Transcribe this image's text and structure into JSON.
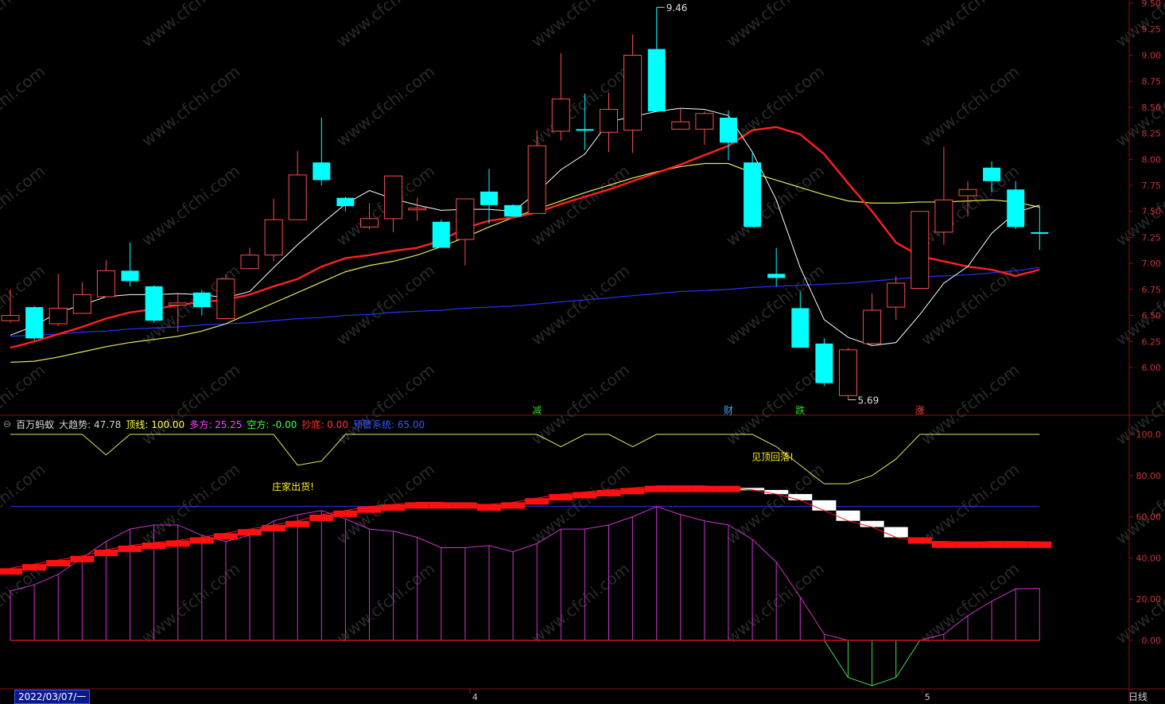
{
  "indicator": {
    "name": "百万蚂蚁",
    "items": [
      {
        "label": "大趋势:",
        "value": "47.78",
        "color": "#cfcfcf"
      },
      {
        "label": "顶线:",
        "value": "100.00",
        "color": "#ffff55"
      },
      {
        "label": "多方:",
        "value": "25.25",
        "color": "#ff44ff"
      },
      {
        "label": "空方:",
        "value": "-0.00",
        "color": "#44ff44"
      },
      {
        "label": "抄底:",
        "value": "0.00",
        "color": "#ff3333"
      },
      {
        "label": "预警系统:",
        "value": "65.00",
        "color": "#3355ff"
      }
    ]
  },
  "date_cursor": "2022/03/07/一",
  "period_label": "日线",
  "price_axis": [
    "9.50",
    "9.25",
    "9.00",
    "8.75",
    "8.50",
    "8.25",
    "8.00",
    "7.75",
    "7.50",
    "7.25",
    "7.00",
    "6.75",
    "6.50",
    "6.25",
    "6.00"
  ],
  "ind_axis": [
    "100.0",
    "80.00",
    "60.00",
    "40.00",
    "20.00",
    "0.00"
  ],
  "month_labels": [
    "4",
    "5"
  ],
  "annotations": {
    "high": "9.46",
    "low": "5.69",
    "signals": [
      {
        "text": "减",
        "color": "#22dd22"
      },
      {
        "text": "财",
        "color": "#33aaff"
      },
      {
        "text": "跌",
        "color": "#22dd22"
      },
      {
        "text": "涨",
        "color": "#ff4444"
      }
    ],
    "callouts": [
      "庄家出货!",
      "见顶回落!"
    ]
  },
  "watermark": "www.cfchi.com",
  "colors": {
    "up": "#ff4d4d",
    "down": "#00ffff",
    "ma5": "#ffffff",
    "ma10": "#ff2020",
    "ma20": "#e6e65a",
    "ma60": "#2233ff"
  },
  "chart_data": {
    "type": "candlestick",
    "ohlc": [
      [
        6.45,
        6.5,
        6.75,
        6.43
      ],
      [
        6.58,
        6.28,
        6.59,
        6.26
      ],
      [
        6.42,
        6.57,
        6.9,
        6.4
      ],
      [
        6.52,
        6.7,
        6.82,
        6.52
      ],
      [
        6.68,
        6.93,
        7.03,
        6.68
      ],
      [
        6.93,
        6.83,
        7.2,
        6.78
      ],
      [
        6.78,
        6.45,
        6.79,
        6.43
      ],
      [
        6.6,
        6.62,
        6.72,
        6.34
      ],
      [
        6.72,
        6.58,
        6.74,
        6.5
      ],
      [
        6.47,
        6.85,
        6.89,
        6.47
      ],
      [
        6.95,
        7.08,
        7.15,
        6.95
      ],
      [
        7.08,
        7.42,
        7.62,
        7.02
      ],
      [
        7.42,
        7.85,
        8.08,
        7.42
      ],
      [
        7.97,
        7.8,
        8.4,
        7.75
      ],
      [
        7.63,
        7.55,
        7.64,
        7.5
      ],
      [
        7.35,
        7.43,
        7.58,
        7.33
      ],
      [
        7.43,
        7.84,
        7.84,
        7.3
      ],
      [
        7.53,
        7.53,
        7.63,
        7.41
      ],
      [
        7.4,
        7.15,
        7.42,
        7.15
      ],
      [
        7.23,
        7.62,
        7.62,
        6.98
      ],
      [
        7.69,
        7.56,
        7.91,
        7.38
      ],
      [
        7.56,
        7.45,
        7.57,
        7.45
      ],
      [
        7.48,
        8.13,
        8.28,
        7.48
      ],
      [
        8.27,
        8.58,
        9.02,
        8.18
      ],
      [
        8.29,
        8.28,
        8.63,
        8.09
      ],
      [
        8.26,
        8.48,
        8.64,
        8.07
      ],
      [
        8.28,
        9.0,
        9.2,
        8.06
      ],
      [
        9.06,
        8.46,
        9.46,
        8.46
      ],
      [
        8.29,
        8.36,
        8.49,
        8.29
      ],
      [
        8.29,
        8.44,
        8.46,
        8.14
      ],
      [
        8.4,
        8.16,
        8.47,
        7.99
      ],
      [
        7.97,
        7.35,
        8.07,
        7.35
      ],
      [
        6.9,
        6.86,
        7.15,
        6.78
      ],
      [
        6.57,
        6.19,
        6.73,
        6.19
      ],
      [
        6.23,
        5.85,
        6.28,
        5.82
      ],
      [
        5.73,
        6.17,
        6.19,
        5.69
      ],
      [
        6.23,
        6.55,
        6.71,
        6.21
      ],
      [
        6.58,
        6.81,
        6.88,
        6.46
      ],
      [
        6.76,
        7.5,
        7.5,
        6.76
      ],
      [
        7.3,
        7.61,
        8.12,
        7.18
      ],
      [
        7.65,
        7.71,
        7.79,
        7.45
      ],
      [
        7.92,
        7.79,
        7.98,
        7.68
      ],
      [
        7.71,
        7.35,
        7.79,
        7.33
      ],
      [
        7.3,
        7.29,
        7.55,
        7.13
      ]
    ],
    "ma5": [
      6.31,
      6.4,
      6.53,
      6.6,
      6.68,
      6.7,
      6.7,
      6.71,
      6.7,
      6.67,
      6.73,
      6.96,
      7.18,
      7.38,
      7.57,
      7.7,
      7.62,
      7.56,
      7.51,
      7.52,
      7.52,
      7.5,
      7.68,
      7.9,
      8.05,
      8.36,
      8.41,
      8.46,
      8.49,
      8.48,
      8.42,
      8.07,
      7.61,
      6.96,
      6.46,
      6.29,
      6.21,
      6.24,
      6.51,
      6.81,
      6.97,
      7.29,
      7.49,
      7.56
    ],
    "ma10": [
      6.19,
      6.25,
      6.32,
      6.39,
      6.47,
      6.53,
      6.56,
      6.6,
      6.63,
      6.65,
      6.7,
      6.78,
      6.85,
      6.97,
      7.05,
      7.08,
      7.12,
      7.15,
      7.22,
      7.34,
      7.41,
      7.44,
      7.49,
      7.57,
      7.64,
      7.71,
      7.79,
      7.87,
      7.95,
      8.04,
      8.13,
      8.28,
      8.31,
      8.24,
      8.05,
      7.77,
      7.5,
      7.2,
      7.07,
      7.02,
      6.97,
      6.94,
      6.88,
      6.94
    ],
    "ma20": [
      6.05,
      6.06,
      6.1,
      6.15,
      6.2,
      6.24,
      6.27,
      6.3,
      6.35,
      6.42,
      6.52,
      6.62,
      6.72,
      6.82,
      6.92,
      6.98,
      7.02,
      7.08,
      7.16,
      7.25,
      7.35,
      7.44,
      7.52,
      7.6,
      7.68,
      7.75,
      7.82,
      7.88,
      7.93,
      7.96,
      7.96,
      7.87,
      7.8,
      7.73,
      7.66,
      7.6,
      7.58,
      7.58,
      7.59,
      7.59,
      7.6,
      7.61,
      7.59,
      7.54
    ],
    "ma60": [
      6.3,
      6.31,
      6.32,
      6.34,
      6.35,
      6.37,
      6.38,
      6.39,
      6.41,
      6.42,
      6.43,
      6.45,
      6.47,
      6.48,
      6.5,
      6.51,
      6.53,
      6.54,
      6.55,
      6.57,
      6.58,
      6.59,
      6.61,
      6.63,
      6.65,
      6.67,
      6.69,
      6.71,
      6.73,
      6.74,
      6.75,
      6.77,
      6.78,
      6.79,
      6.8,
      6.81,
      6.83,
      6.85,
      6.87,
      6.88,
      6.89,
      6.91,
      6.93,
      6.96
    ],
    "trend": [
      35,
      37,
      39,
      41,
      44,
      46,
      47.5,
      48.5,
      50,
      52,
      54,
      56,
      58,
      61,
      63,
      65,
      66,
      67,
      67,
      66,
      66,
      67,
      69,
      71,
      72,
      73,
      74,
      75,
      75,
      75,
      74,
      73,
      71,
      68,
      63,
      58,
      55,
      50,
      48,
      48,
      47.5,
      48,
      48,
      47.78
    ],
    "top_line": [
      100,
      100,
      100,
      100,
      90,
      100,
      100,
      100,
      100,
      100,
      100,
      100,
      85,
      87,
      100,
      100,
      100,
      100,
      100,
      100,
      100,
      100,
      100,
      94,
      100,
      100,
      94,
      100,
      100,
      100,
      100,
      100,
      94,
      85,
      76,
      76,
      80,
      88,
      100,
      100,
      100,
      100,
      100,
      100
    ],
    "bull": [
      24,
      27,
      32,
      40,
      48,
      54,
      56,
      56,
      51,
      48,
      51,
      58,
      61,
      63,
      59,
      54,
      53,
      50,
      45,
      45,
      46,
      43,
      47,
      54,
      54,
      56,
      60,
      65,
      61,
      58,
      56,
      49,
      38,
      21,
      3,
      0,
      0,
      0,
      0,
      3,
      12,
      19,
      25,
      25.25
    ],
    "bear": [
      0,
      0,
      0,
      0,
      0,
      0,
      0,
      0,
      0,
      0,
      0,
      0,
      0,
      0,
      0,
      0,
      0,
      0,
      0,
      0,
      0,
      0,
      0,
      0,
      0,
      0,
      0,
      0,
      0,
      0,
      0,
      0,
      0,
      0,
      0,
      -18,
      -22,
      -18,
      0,
      0,
      0,
      0,
      0,
      0
    ],
    "warning": 65
  }
}
